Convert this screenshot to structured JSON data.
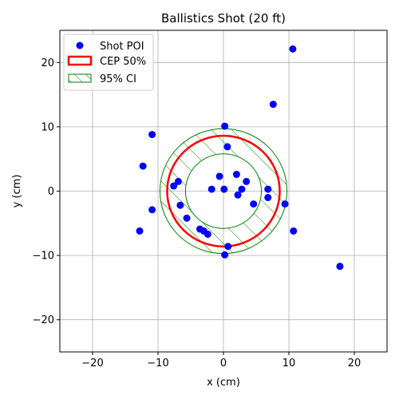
{
  "chart_data": {
    "type": "scatter",
    "title": "Ballistics Shot (20 ft)",
    "xlabel": "x (cm)",
    "ylabel": "y (cm)",
    "xlim": [
      -25,
      25
    ],
    "ylim": [
      -25,
      25
    ],
    "xticks": [
      -20,
      -10,
      0,
      10,
      20
    ],
    "yticks": [
      -20,
      -10,
      0,
      10,
      20
    ],
    "grid": true,
    "legend_position": "top-left",
    "series": [
      {
        "name": "Shot POI",
        "color": "#0000ff",
        "points": [
          [
            10.6,
            22.1
          ],
          [
            7.6,
            13.5
          ],
          [
            0.2,
            10.1
          ],
          [
            -10.9,
            8.8
          ],
          [
            0.6,
            6.9
          ],
          [
            -12.3,
            3.9
          ],
          [
            -0.6,
            2.3
          ],
          [
            2.0,
            2.6
          ],
          [
            3.5,
            1.5
          ],
          [
            -6.9,
            1.5
          ],
          [
            -7.6,
            0.8
          ],
          [
            -1.8,
            0.3
          ],
          [
            0.1,
            0.3
          ],
          [
            2.8,
            0.3
          ],
          [
            6.8,
            0.3
          ],
          [
            2.2,
            -0.6
          ],
          [
            6.8,
            -1.0
          ],
          [
            4.6,
            -2.0
          ],
          [
            9.4,
            -2.0
          ],
          [
            -6.6,
            -2.2
          ],
          [
            -10.9,
            -2.9
          ],
          [
            -5.6,
            -4.2
          ],
          [
            -3.6,
            -5.9
          ],
          [
            -3.0,
            -6.2
          ],
          [
            -2.4,
            -6.7
          ],
          [
            -12.8,
            -6.2
          ],
          [
            10.7,
            -6.2
          ],
          [
            0.7,
            -8.6
          ],
          [
            0.2,
            -9.9
          ],
          [
            17.8,
            -11.7
          ]
        ]
      }
    ],
    "cep50": {
      "name": "CEP 50%",
      "center": [
        0,
        0
      ],
      "radius": 8.6,
      "color": "#ff0000"
    },
    "ci95": {
      "name": "95% CI",
      "center": [
        0,
        0
      ],
      "inner_radius": 5.8,
      "outer_radius": 9.7,
      "color": "#008000"
    }
  }
}
